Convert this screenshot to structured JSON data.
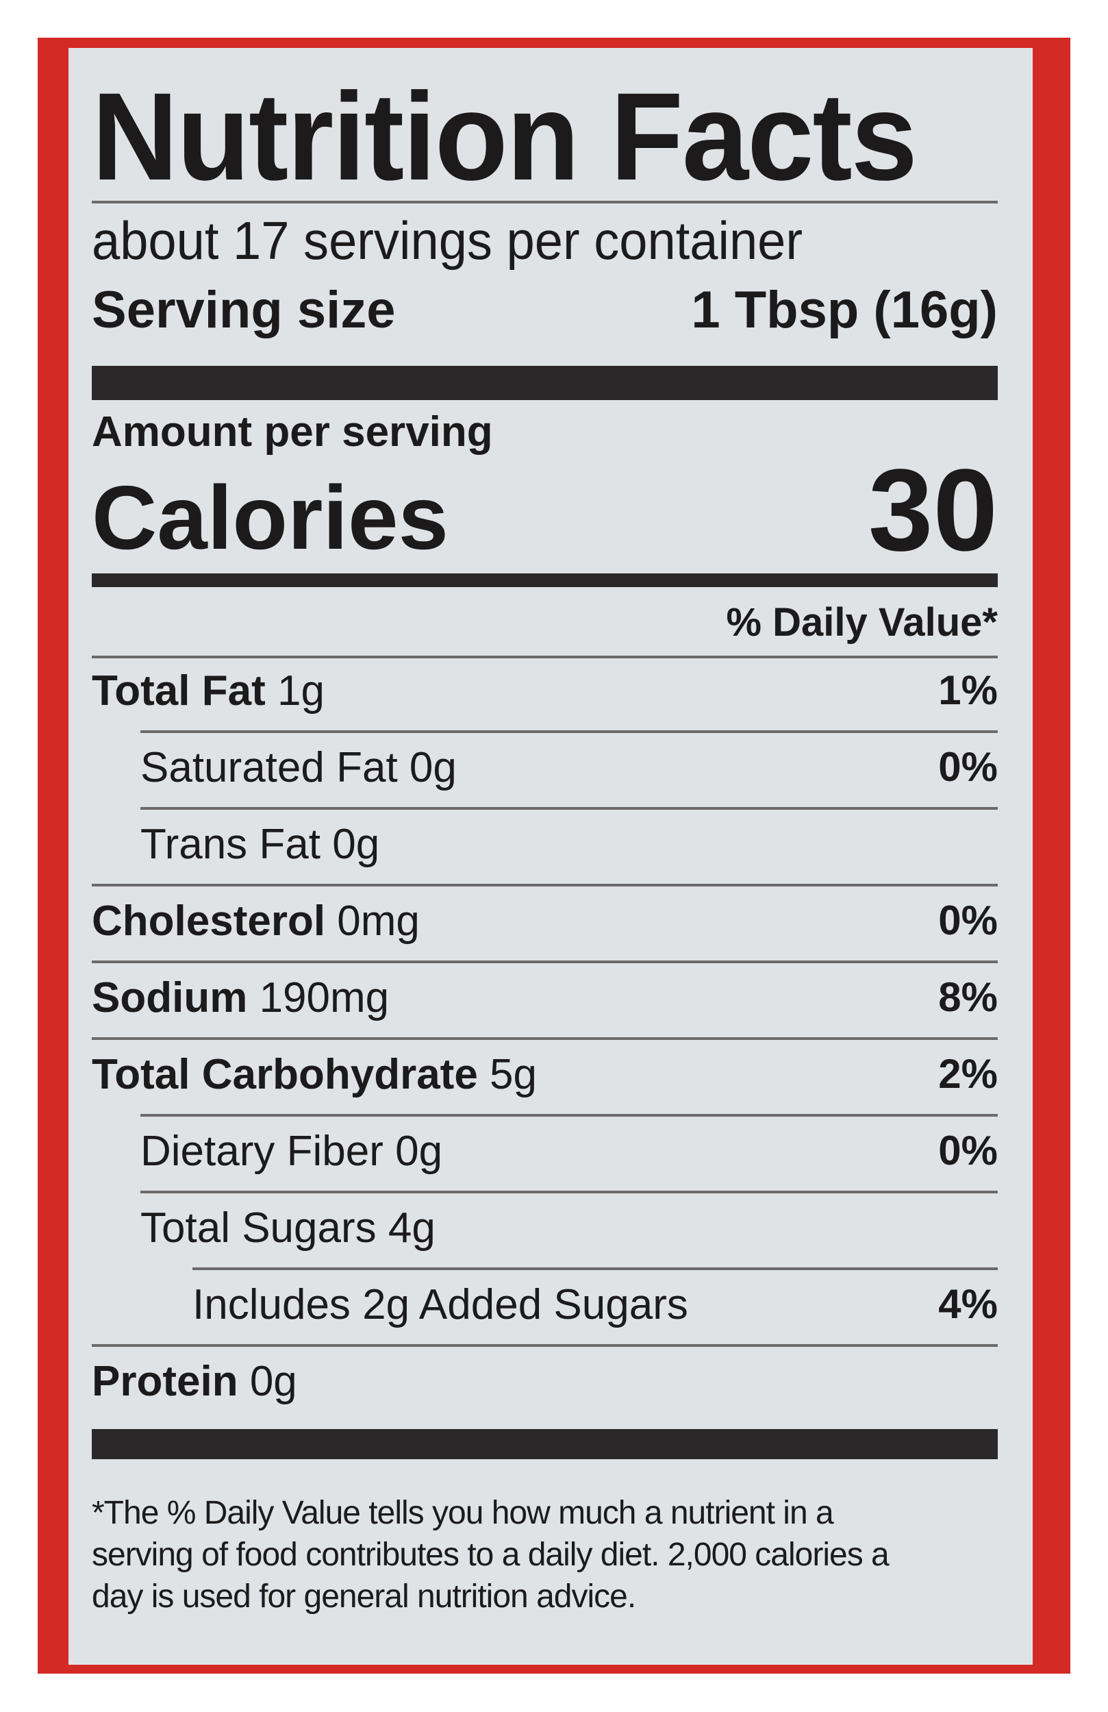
{
  "label": {
    "title": "Nutrition Facts",
    "servings_per_container": "about 17 servings per container",
    "serving_size_label": "Serving size",
    "serving_size_value": "1 Tbsp (16g)",
    "amount_per_serving": "Amount per serving",
    "calories_label": "Calories",
    "calories_value": "30",
    "daily_value_header": "% Daily Value*",
    "nutrients": [
      {
        "name": "Total Fat",
        "amount": "1g",
        "dv": "1%",
        "bold": true,
        "indent": 0
      },
      {
        "name": "Saturated Fat",
        "amount": "0g",
        "dv": "0%",
        "bold": false,
        "indent": 1
      },
      {
        "name": "Trans Fat",
        "amount": "0g",
        "dv": "",
        "bold": false,
        "indent": 1
      },
      {
        "name": "Cholesterol",
        "amount": "0mg",
        "dv": "0%",
        "bold": true,
        "indent": 0
      },
      {
        "name": "Sodium",
        "amount": "190mg",
        "dv": "8%",
        "bold": true,
        "indent": 0
      },
      {
        "name": "Total Carbohydrate",
        "amount": "5g",
        "dv": "2%",
        "bold": true,
        "indent": 0
      },
      {
        "name": "Dietary Fiber",
        "amount": "0g",
        "dv": "0%",
        "bold": false,
        "indent": 1
      },
      {
        "name": "Total Sugars",
        "amount": "4g",
        "dv": "",
        "bold": false,
        "indent": 1
      },
      {
        "name": "Includes 2g Added Sugars",
        "amount": "",
        "dv": "4%",
        "bold": false,
        "indent": 2
      },
      {
        "name": "Protein",
        "amount": "0g",
        "dv": "",
        "bold": true,
        "indent": 0
      }
    ],
    "footnote_lines": [
      "*The % Daily Value tells you how much a nutrient in a",
      "serving of food contributes to a daily diet. 2,000 calories a",
      "day is used for general nutrition advice."
    ]
  },
  "colors": {
    "border": "#d42a26",
    "panel": "#dfe3e6",
    "ink": "#1c1a1b"
  }
}
